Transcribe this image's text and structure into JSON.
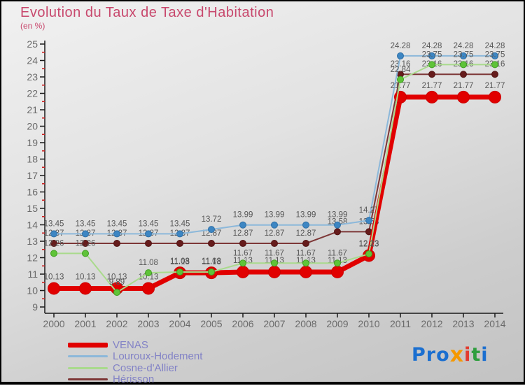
{
  "header": {
    "title": "Evolution du Taux de Taxe d'Habitation",
    "subtitle": "(en %)"
  },
  "chart_data": {
    "type": "line",
    "x": [
      2000,
      2001,
      2002,
      2003,
      2004,
      2005,
      2006,
      2007,
      2008,
      2009,
      2010,
      2011,
      2012,
      2013,
      2014
    ],
    "ylim": [
      9,
      25
    ],
    "y_major_step": 1,
    "y_minor_step": 0.5,
    "grid": false,
    "point_labels": true,
    "series": [
      {
        "name": "VENAS",
        "emphasis": true,
        "values": [
          10.13,
          10.13,
          10.13,
          10.13,
          11.08,
          11.08,
          11.13,
          11.13,
          11.13,
          11.13,
          12.13,
          21.77,
          21.77,
          21.77,
          21.77
        ],
        "line_color": "#e10000",
        "marker_color": "#e10000",
        "marker_stroke": "#cc0000"
      },
      {
        "name": "Louroux-Hodement",
        "emphasis": false,
        "values": [
          13.45,
          13.45,
          13.45,
          13.45,
          13.45,
          13.72,
          13.99,
          13.99,
          13.99,
          13.99,
          14.27,
          24.28,
          24.28,
          24.28,
          24.28
        ],
        "line_color": "#8cb8da",
        "marker_color": "#3d86c3",
        "marker_stroke": "#2f6fa5"
      },
      {
        "name": "Cosne-d'Allier",
        "emphasis": false,
        "values": [
          12.26,
          12.26,
          9.89,
          11.08,
          11.13,
          11.13,
          11.67,
          11.67,
          11.67,
          11.67,
          12.23,
          22.84,
          23.75,
          23.75,
          23.75
        ],
        "line_color": "#a9da8c",
        "marker_color": "#5fc338",
        "marker_stroke": "#3f9e20"
      },
      {
        "name": "Hérisson",
        "emphasis": false,
        "values": [
          12.87,
          12.87,
          12.87,
          12.87,
          12.87,
          12.87,
          12.87,
          12.87,
          12.87,
          13.58,
          13.58,
          23.16,
          23.16,
          23.16,
          23.16
        ],
        "line_color": "#7d3737",
        "marker_color": "#661c1c",
        "marker_stroke": "#521414"
      }
    ],
    "axis_color": "#1a1a1a",
    "tick_label_color": "#6b6b6b",
    "minor_tick_color": "#cc2222",
    "point_label_color": "#575757",
    "legend_position": "bottom-left"
  },
  "legend": {
    "items": [
      {
        "label": "VENAS",
        "color": "#e10000",
        "thick": true
      },
      {
        "label": "Louroux-Hodement",
        "color": "#8cb8da",
        "thick": false
      },
      {
        "label": "Cosne-d'Allier",
        "color": "#a9da8c",
        "thick": false
      },
      {
        "label": "Hérisson",
        "color": "#7d3737",
        "thick": false
      }
    ]
  },
  "logo": {
    "letters": [
      {
        "ch": "P",
        "color": "#1b6fd0",
        "big": false
      },
      {
        "ch": "r",
        "color": "#1b6fd0",
        "big": false
      },
      {
        "ch": "o",
        "color": "#1b6fd0",
        "big": false
      },
      {
        "ch": "x",
        "color": "#f59800",
        "big": true
      },
      {
        "ch": "i",
        "color": "#e23b2e",
        "big": false
      },
      {
        "ch": "t",
        "color": "#2f9e3f",
        "big": false
      },
      {
        "ch": "i",
        "color": "#1b6fd0",
        "big": false
      }
    ]
  }
}
